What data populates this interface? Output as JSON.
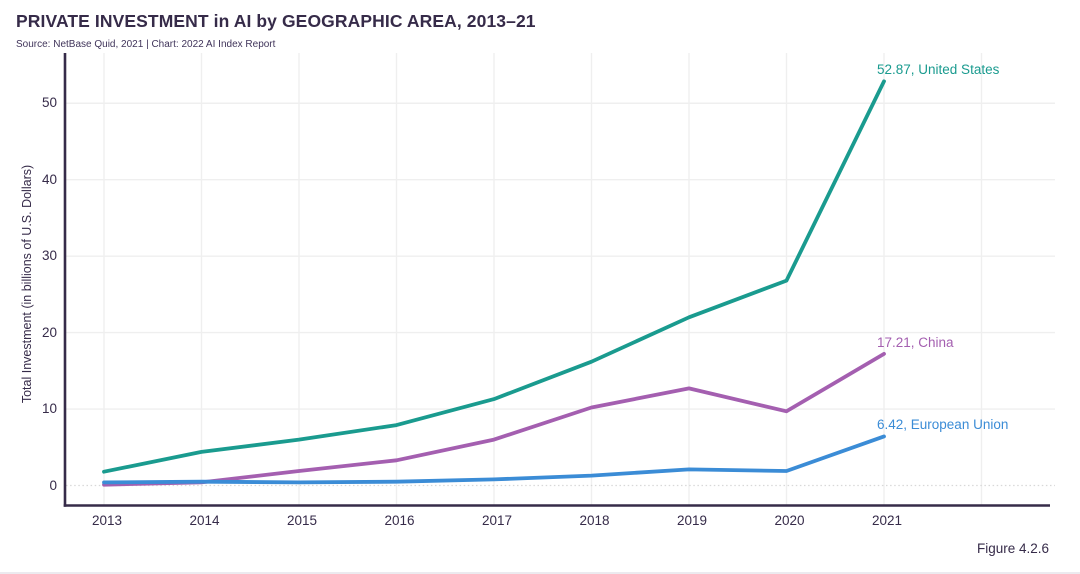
{
  "figure_caption": "Figure 4.2.6",
  "chart_data": {
    "type": "line",
    "title": "PRIVATE INVESTMENT in AI by GEOGRAPHIC AREA, 2013–21",
    "subtitle": "Source: NetBase Quid, 2021 | Chart: 2022 AI Index Report",
    "xlabel": "",
    "ylabel": "Total Investment (in billions of U.S. Dollars)",
    "x": [
      2013,
      2014,
      2015,
      2016,
      2017,
      2018,
      2019,
      2020,
      2021
    ],
    "series": [
      {
        "name": "United States",
        "color": "#1A9B8F",
        "values": [
          1.8,
          4.4,
          6.0,
          7.9,
          11.3,
          16.2,
          22.0,
          26.8,
          52.87
        ],
        "end_value": 52.87,
        "end_label": "52.87, United States"
      },
      {
        "name": "China",
        "color": "#A45FB0",
        "values": [
          0.1,
          0.4,
          1.9,
          3.3,
          6.0,
          10.2,
          12.7,
          9.7,
          17.21
        ],
        "end_value": 17.21,
        "end_label": "17.21, China"
      },
      {
        "name": "European Union",
        "color": "#3B8CD6",
        "values": [
          0.4,
          0.5,
          0.4,
          0.5,
          0.8,
          1.3,
          2.1,
          1.9,
          6.42
        ],
        "end_value": 6.42,
        "end_label": "6.42, European Union"
      }
    ],
    "yticks": [
      0,
      10,
      20,
      30,
      40,
      50
    ],
    "ylim": [
      0,
      55
    ],
    "grid": true,
    "legend_position": "end-of-line-labels",
    "colors": {
      "text_dark": "#362B49",
      "axis": "#362B49",
      "gridline": "#EFEFEF",
      "zero_line_dotted": "#D8D8D8",
      "background": "#FFFFFF"
    }
  }
}
